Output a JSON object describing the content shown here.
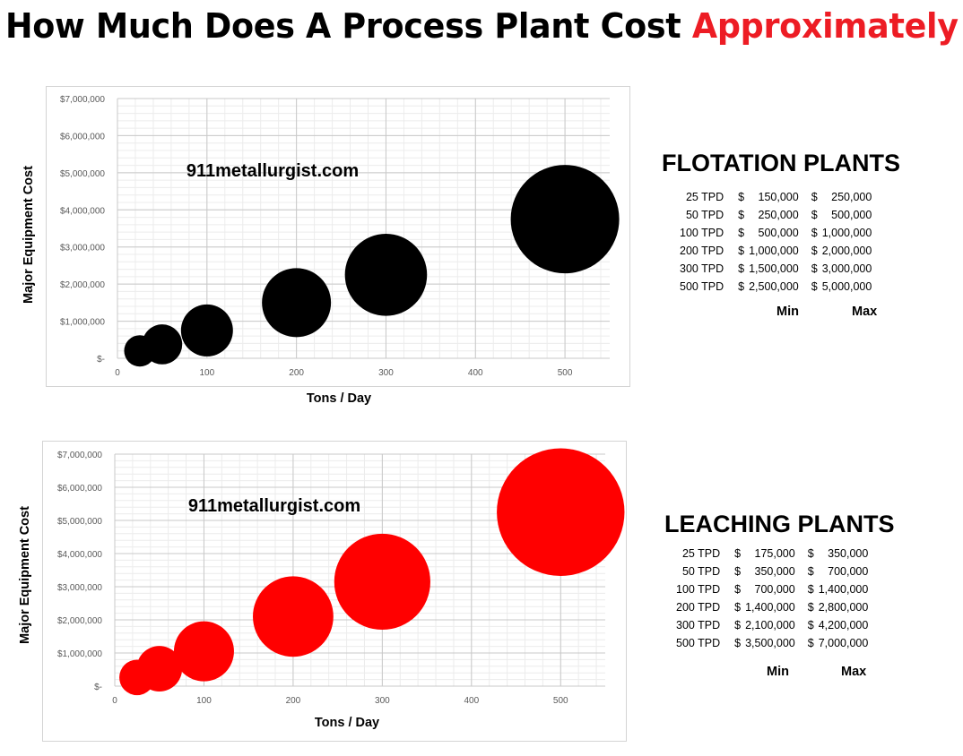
{
  "title": {
    "main": "How Much Does A Process Plant Cost",
    "accent": "Approximately"
  },
  "colors": {
    "accent": "#ed1c24",
    "flotation": "#000000",
    "leaching": "#ff0000"
  },
  "chart_data": [
    {
      "type": "scatter",
      "watermark": "911metallurgist.com",
      "xlabel": "Tons / Day",
      "ylabel": "Major Equipment Cost",
      "xlim": [
        0,
        550
      ],
      "ylim": [
        0,
        7000000
      ],
      "x_ticks": [
        "0",
        "100",
        "200",
        "300",
        "400",
        "500"
      ],
      "y_ticks": [
        "$-",
        "$1,000,000",
        "$2,000,000",
        "$3,000,000",
        "$4,000,000",
        "$5,000,000",
        "$6,000,000",
        "$7,000,000"
      ],
      "grid": true,
      "color": "#000000",
      "series": [
        {
          "x": [
            25,
            50,
            100,
            200,
            300,
            500
          ],
          "y": [
            200000,
            375000,
            750000,
            1500000,
            2250000,
            3750000
          ]
        }
      ]
    },
    {
      "type": "scatter",
      "watermark": "911metallurgist.com",
      "xlabel": "Tons / Day",
      "ylabel": "Major Equipment Cost",
      "xlim": [
        0,
        550
      ],
      "ylim": [
        0,
        7000000
      ],
      "x_ticks": [
        "0",
        "100",
        "200",
        "300",
        "400",
        "500"
      ],
      "y_ticks": [
        "$-",
        "$1,000,000",
        "$2,000,000",
        "$3,000,000",
        "$4,000,000",
        "$5,000,000",
        "$6,000,000",
        "$7,000,000"
      ],
      "grid": true,
      "color": "#ff0000",
      "series": [
        {
          "x": [
            25,
            50,
            100,
            200,
            300,
            500
          ],
          "y": [
            262500,
            525000,
            1050000,
            2100000,
            3150000,
            5250000
          ]
        }
      ]
    }
  ],
  "flotation": {
    "title": "FLOTATION PLANTS",
    "rows": [
      {
        "label": "25 TPD",
        "min": "150,000",
        "max": "250,000"
      },
      {
        "label": "50 TPD",
        "min": "250,000",
        "max": "500,000"
      },
      {
        "label": "100 TPD",
        "min": "500,000",
        "max": "1,000,000"
      },
      {
        "label": "200 TPD",
        "min": "1,000,000",
        "max": "2,000,000"
      },
      {
        "label": "300 TPD",
        "min": "1,500,000",
        "max": "3,000,000"
      },
      {
        "label": "500 TPD",
        "min": "2,500,000",
        "max": "5,000,000"
      }
    ],
    "min_label": "Min",
    "max_label": "Max"
  },
  "leaching": {
    "title": "LEACHING PLANTS",
    "rows": [
      {
        "label": "25 TPD",
        "min": "175,000",
        "max": "350,000"
      },
      {
        "label": "50 TPD",
        "min": "350,000",
        "max": "700,000"
      },
      {
        "label": "100 TPD",
        "min": "700,000",
        "max": "1,400,000"
      },
      {
        "label": "200 TPD",
        "min": "1,400,000",
        "max": "2,800,000"
      },
      {
        "label": "300 TPD",
        "min": "2,100,000",
        "max": "4,200,000"
      },
      {
        "label": "500 TPD",
        "min": "3,500,000",
        "max": "7,000,000"
      }
    ],
    "min_label": "Min",
    "max_label": "Max"
  },
  "currency_symbol": "$"
}
